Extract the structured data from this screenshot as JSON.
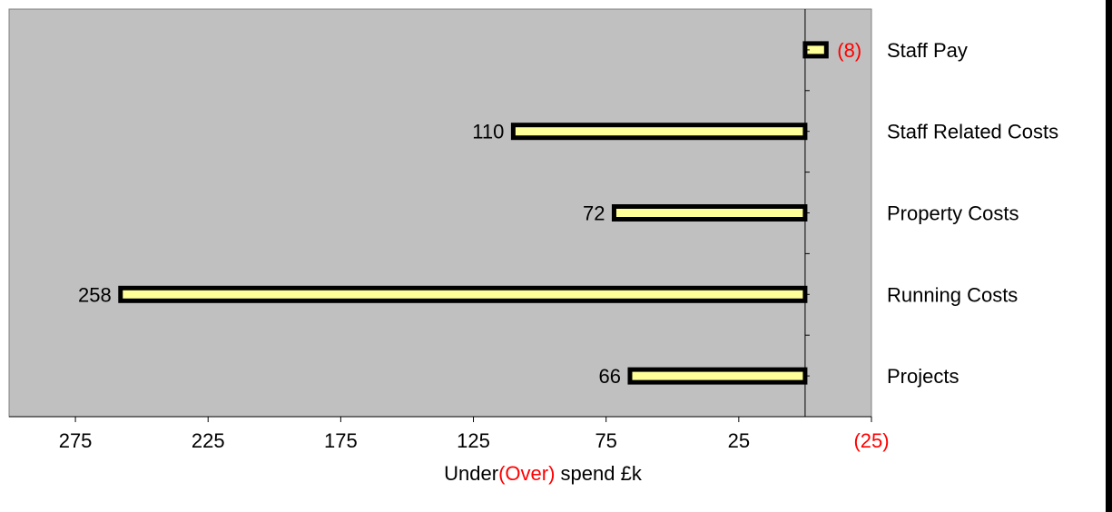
{
  "chart_data": {
    "type": "bar",
    "orientation": "horizontal",
    "categories": [
      "Staff Pay",
      "Staff Related Costs",
      "Property Costs",
      "Running Costs",
      "Projects"
    ],
    "values": [
      -8,
      110,
      72,
      258,
      66
    ],
    "value_labels": [
      "(8)",
      "110",
      "72",
      "258",
      "66"
    ],
    "x_axis": {
      "reversed": true,
      "range": [
        300,
        -25
      ],
      "ticks": [
        275,
        225,
        175,
        125,
        75,
        25,
        -25
      ],
      "tick_labels": [
        "275",
        "225",
        "175",
        "125",
        "75",
        "25",
        "(25)"
      ],
      "label_parts": [
        {
          "text": "Under",
          "color": "#000000"
        },
        {
          "text": "(Over)",
          "color": "#ff0000"
        },
        {
          "text": " spend £k",
          "color": "#000000"
        }
      ]
    },
    "grid": false,
    "category_label_position": "right"
  },
  "colors": {
    "plot_background": "#c0c0c0",
    "bar_fill": "#ffff99",
    "bar_stroke": "#000000",
    "negative_text": "#ff0000",
    "positive_text": "#000000"
  }
}
